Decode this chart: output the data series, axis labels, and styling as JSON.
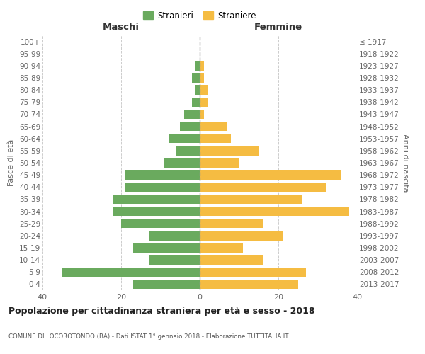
{
  "age_groups": [
    "0-4",
    "5-9",
    "10-14",
    "15-19",
    "20-24",
    "25-29",
    "30-34",
    "35-39",
    "40-44",
    "45-49",
    "50-54",
    "55-59",
    "60-64",
    "65-69",
    "70-74",
    "75-79",
    "80-84",
    "85-89",
    "90-94",
    "95-99",
    "100+"
  ],
  "birth_years": [
    "2013-2017",
    "2008-2012",
    "2003-2007",
    "1998-2002",
    "1993-1997",
    "1988-1992",
    "1983-1987",
    "1978-1982",
    "1973-1977",
    "1968-1972",
    "1963-1967",
    "1958-1962",
    "1953-1957",
    "1948-1952",
    "1943-1947",
    "1938-1942",
    "1933-1937",
    "1928-1932",
    "1923-1927",
    "1918-1922",
    "≤ 1917"
  ],
  "maschi": [
    17,
    35,
    13,
    17,
    13,
    20,
    22,
    22,
    19,
    19,
    9,
    6,
    8,
    5,
    4,
    2,
    1,
    2,
    1,
    0,
    0
  ],
  "femmine": [
    25,
    27,
    16,
    11,
    21,
    16,
    38,
    26,
    32,
    36,
    10,
    15,
    8,
    7,
    1,
    2,
    2,
    1,
    1,
    0,
    0
  ],
  "male_color": "#6aaa5e",
  "female_color": "#f5bc42",
  "center_line_color": "#999999",
  "grid_color": "#cccccc",
  "background_color": "#ffffff",
  "title": "Popolazione per cittadinanza straniera per età e sesso - 2018",
  "subtitle": "COMUNE DI LOCOROTONDO (BA) - Dati ISTAT 1° gennaio 2018 - Elaborazione TUTTITALIA.IT",
  "xlabel_left": "Maschi",
  "xlabel_right": "Femmine",
  "ylabel_left": "Fasce di età",
  "ylabel_right": "Anni di nascita",
  "legend_male": "Stranieri",
  "legend_female": "Straniere",
  "xlim": 40
}
